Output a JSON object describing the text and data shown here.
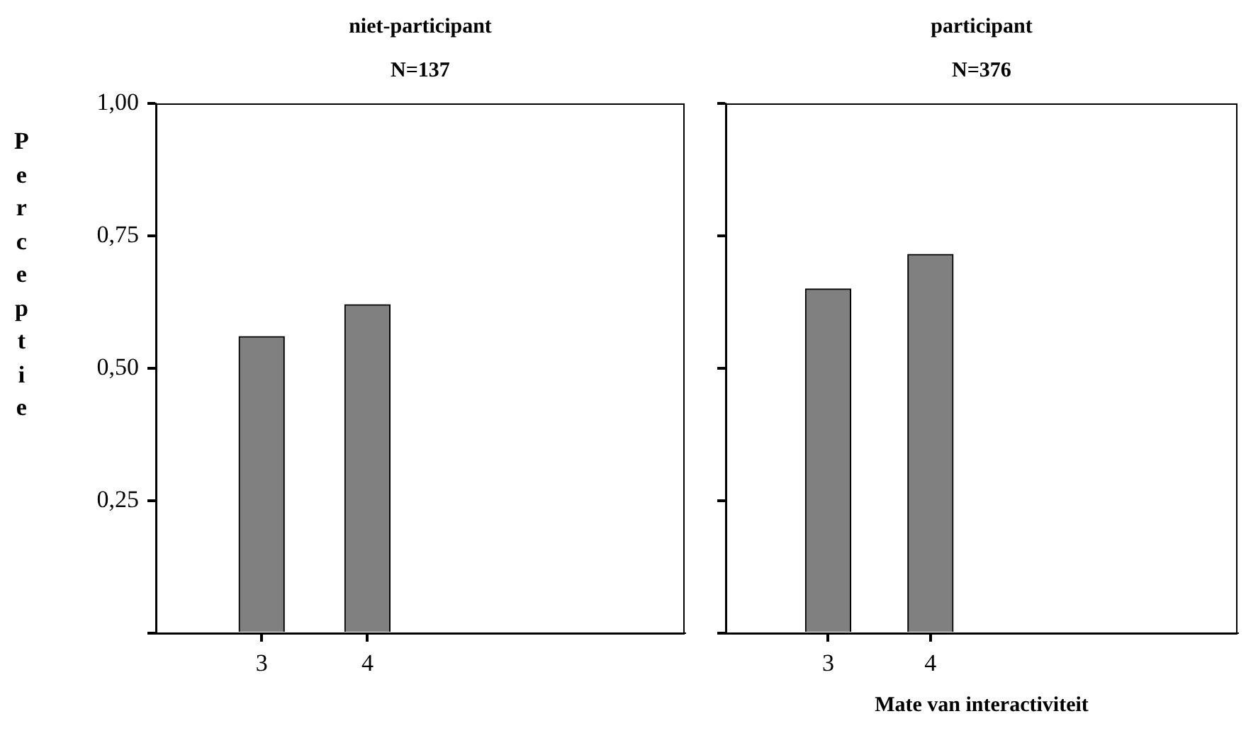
{
  "chart_data": [
    {
      "type": "bar",
      "title": "niet-participant",
      "subtitle": "N=137",
      "ylabel": "Perceptie",
      "categories": [
        null,
        "3",
        "4",
        null,
        null,
        null
      ],
      "values": [
        null,
        0.56,
        0.62,
        null,
        null,
        null
      ],
      "color": "#808080",
      "ylim": [
        0,
        1
      ],
      "yticks": [
        {
          "value": 0,
          "label": null
        },
        {
          "value": 0.25,
          "label": "0,25"
        },
        {
          "value": 0.5,
          "label": "0,50"
        },
        {
          "value": 0.75,
          "label": "0,75"
        },
        {
          "value": 1,
          "label": "1,00"
        }
      ]
    },
    {
      "type": "bar",
      "title": "participant",
      "subtitle": "N=376",
      "xlabel": "Mate van interactiviteit",
      "categories": [
        null,
        "3",
        "4",
        null,
        null,
        null
      ],
      "values": [
        null,
        0.65,
        0.715,
        null,
        null,
        null
      ],
      "color": "#808080",
      "ylim": [
        0,
        1
      ],
      "yticks": [
        {
          "value": 0,
          "label": null
        },
        {
          "value": 0.25,
          "label": null
        },
        {
          "value": 0.5,
          "label": null
        },
        {
          "value": 0.75,
          "label": null
        },
        {
          "value": 1,
          "label": null
        }
      ],
      "tick_labels": "x"
    }
  ]
}
